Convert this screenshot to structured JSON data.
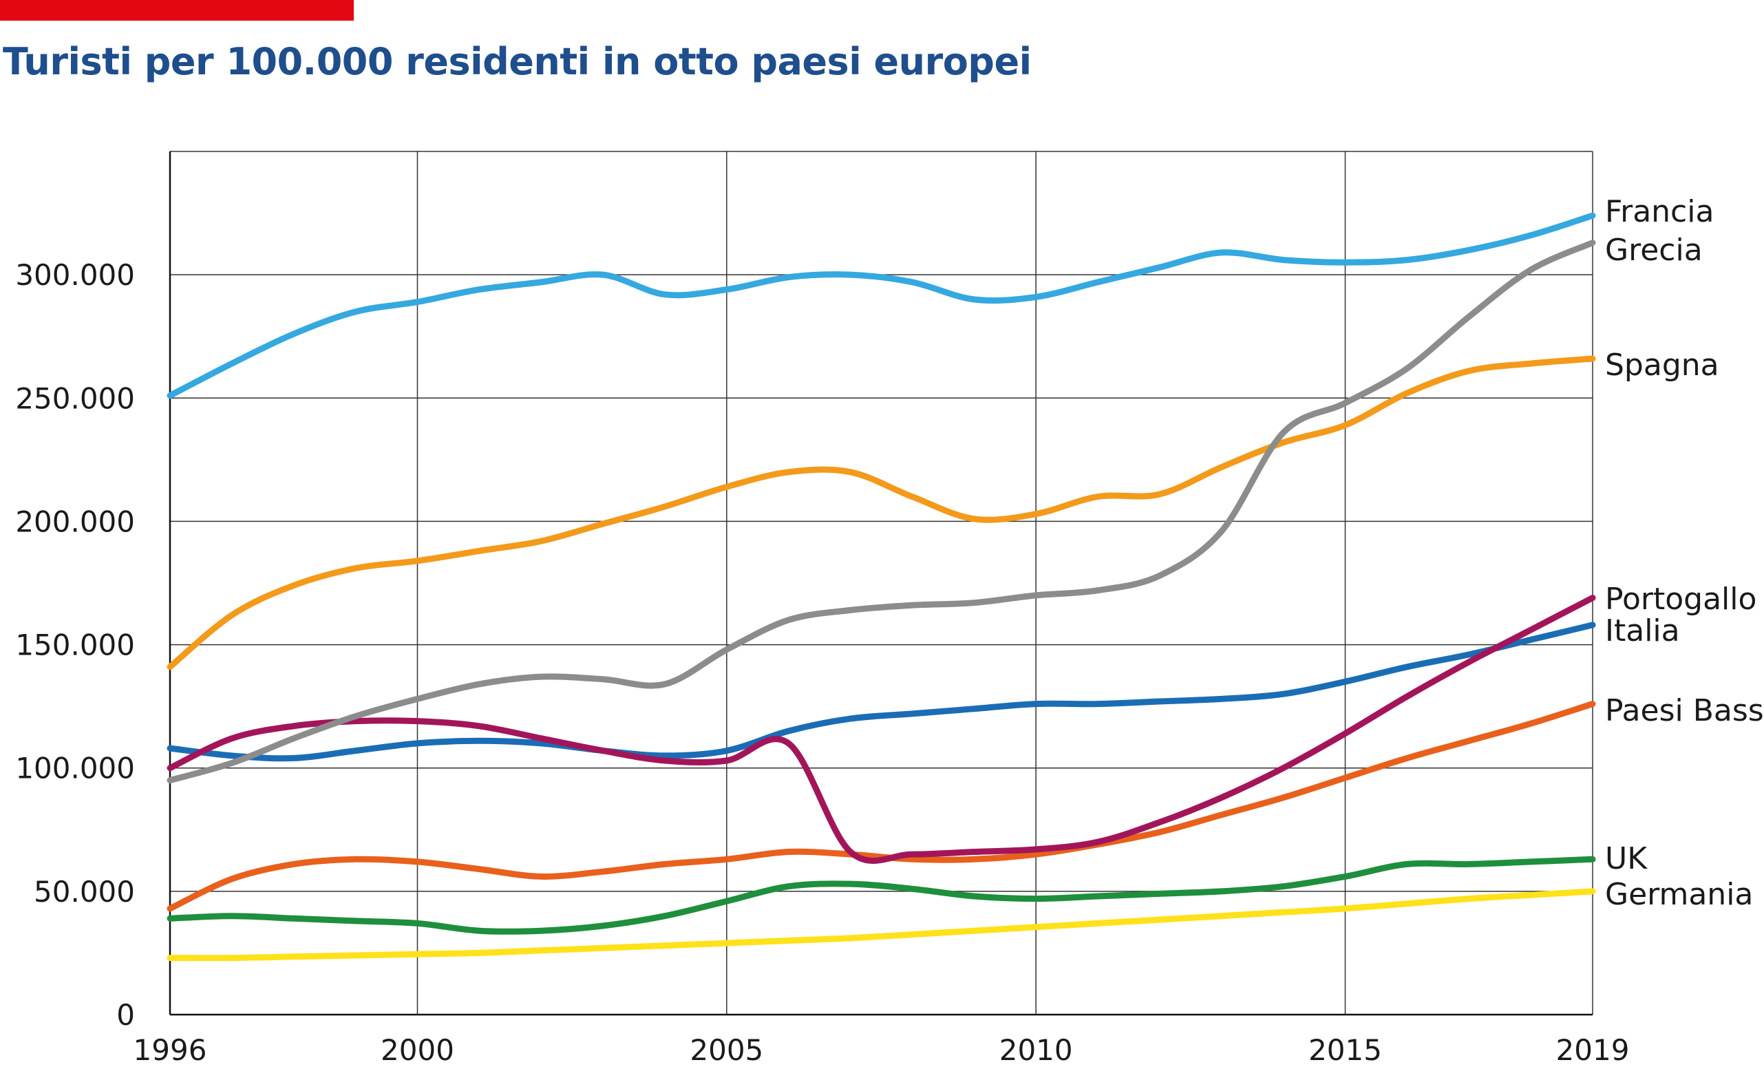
{
  "chart_data": {
    "type": "line",
    "title": "Turisti per 100.000 residenti in otto paesi europei",
    "xlabel": "",
    "ylabel": "",
    "xlim": [
      1996,
      2019
    ],
    "ylim": [
      0,
      350000
    ],
    "grid": true,
    "x_ticks": [
      1996,
      2000,
      2005,
      2010,
      2015,
      2019
    ],
    "x_tick_labels": [
      "1996",
      "2000",
      "2005",
      "2010",
      "2015",
      "2019"
    ],
    "y_ticks": [
      0,
      50000,
      100000,
      150000,
      200000,
      250000,
      300000
    ],
    "y_tick_labels": [
      "0",
      "50.000",
      "100.000",
      "150.000",
      "200.000",
      "250.000",
      "300.000"
    ],
    "legend": "inline-right",
    "x": [
      1996,
      1997,
      1998,
      1999,
      2000,
      2001,
      2002,
      2003,
      2004,
      2005,
      2006,
      2007,
      2008,
      2009,
      2010,
      2011,
      2012,
      2013,
      2014,
      2015,
      2016,
      2017,
      2018,
      2019
    ],
    "series": [
      {
        "name": "Francia",
        "color": "#35a8e0",
        "values": [
          251000,
          264000,
          276000,
          285000,
          289000,
          294000,
          297000,
          300000,
          292000,
          294000,
          299000,
          300000,
          297000,
          290000,
          291000,
          297000,
          303000,
          309000,
          306000,
          305000,
          306000,
          310000,
          316000,
          324000
        ]
      },
      {
        "name": "Grecia",
        "color": "#8c8c8c",
        "values": [
          95000,
          102000,
          112000,
          121000,
          128000,
          134000,
          137000,
          136000,
          134000,
          148000,
          160000,
          164000,
          166000,
          167000,
          170000,
          172000,
          178000,
          196000,
          236000,
          248000,
          262000,
          283000,
          302000,
          313000
        ]
      },
      {
        "name": "Spagna",
        "color": "#f39a1b",
        "values": [
          141000,
          162000,
          174000,
          181000,
          184000,
          188000,
          192000,
          199000,
          206000,
          214000,
          220000,
          220000,
          210000,
          201000,
          203000,
          210000,
          211000,
          222000,
          232000,
          239000,
          252000,
          261000,
          264000,
          266000
        ]
      },
      {
        "name": "Portogallo",
        "color": "#a3155b",
        "values": [
          100000,
          112000,
          117000,
          119000,
          119000,
          117000,
          112000,
          107000,
          103000,
          103000,
          110000,
          66000,
          65000,
          66000,
          67000,
          70000,
          78000,
          88000,
          100000,
          114000,
          129000,
          143000,
          156000,
          169000
        ]
      },
      {
        "name": "Italia",
        "color": "#1a6db5",
        "values": [
          108000,
          105000,
          104000,
          107000,
          110000,
          111000,
          110000,
          107000,
          105000,
          107000,
          115000,
          120000,
          122000,
          124000,
          126000,
          126000,
          127000,
          128000,
          130000,
          135000,
          141000,
          146000,
          152000,
          158000
        ]
      },
      {
        "name": "Paesi Bassi",
        "color": "#e8601c",
        "values": [
          43000,
          55000,
          61000,
          63000,
          62000,
          59000,
          56000,
          58000,
          61000,
          63000,
          66000,
          65000,
          63000,
          63000,
          65000,
          69000,
          74000,
          81000,
          88000,
          96000,
          104000,
          111000,
          118000,
          126000
        ]
      },
      {
        "name": "UK",
        "color": "#1e8f3c",
        "values": [
          39000,
          40000,
          39000,
          38000,
          37000,
          34000,
          34000,
          36000,
          40000,
          46000,
          52000,
          53000,
          51000,
          48000,
          47000,
          48000,
          49000,
          50000,
          52000,
          56000,
          61000,
          61000,
          62000,
          63000
        ]
      },
      {
        "name": "Germania",
        "color": "#ffe11a",
        "values": [
          23000,
          23000,
          23500,
          24000,
          24500,
          25000,
          26000,
          27000,
          28000,
          29000,
          30000,
          31000,
          32500,
          34000,
          35500,
          37000,
          38500,
          40000,
          41500,
          43000,
          45000,
          47000,
          48500,
          50000
        ]
      }
    ]
  }
}
